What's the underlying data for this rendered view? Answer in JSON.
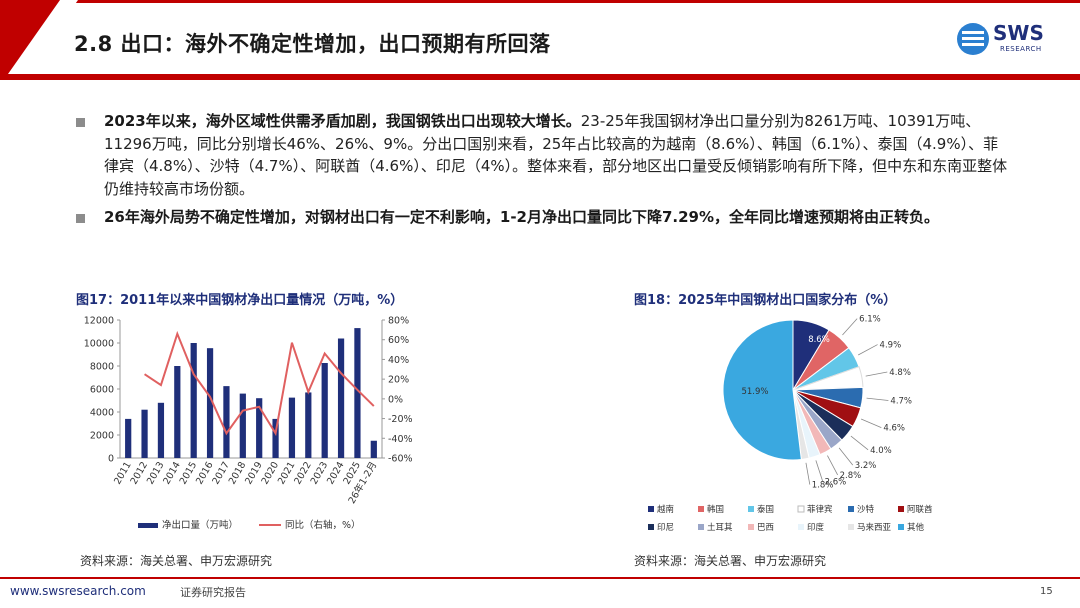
{
  "header": {
    "title": "2.8 出口：海外不确定性增加，出口预期有所回落",
    "logo_text": "SWS",
    "logo_sub": "RESEARCH"
  },
  "bullets": [
    {
      "bold": "2023年以来，海外区域性供需矛盾加剧，我国钢铁出口出现较大增长。",
      "text": "23-25年我国钢材净出口量分别为8261万吨、10391万吨、11296万吨，同比分别增长46%、26%、9%。分出口国别来看，25年占比较高的为越南（8.6%）、韩国（6.1%）、泰国（4.9%）、菲律宾（4.8%）、沙特（4.7%）、阿联酋（4.6%）、印尼（4%）。整体来看，部分地区出口量受反倾销影响有所下降，但中东和东南亚整体仍维持较高市场份额。"
    },
    {
      "bold": "26年海外局势不确定性增加，对钢材出口有一定不利影响，1-2月净出口量同比下降7.29%，全年同比增速预期将由正转负。",
      "text": ""
    }
  ],
  "fig17": {
    "title": "图17：2011年以来中国钢材净出口量情况（万吨，%）",
    "source": "资料来源：海关总署、申万宏源研究"
  },
  "fig18": {
    "title": "图18：2025年中国钢材出口国家分布（%）",
    "source": "资料来源：海关总署、申万宏源研究"
  },
  "footer": {
    "url": "www.swsresearch.com",
    "note": "证券研究报告",
    "page": "15"
  },
  "chart_data": [
    {
      "type": "bar",
      "categories": [
        "2011",
        "2012",
        "2013",
        "2014",
        "2015",
        "2016",
        "2017",
        "2018",
        "2019",
        "2020",
        "2021",
        "2022",
        "2023",
        "2024",
        "2025",
        "26年1-2月"
      ],
      "series": [
        {
          "name": "净出口量（万吨）",
          "type": "bar",
          "axis": "left",
          "color": "#1f2f7a",
          "values": [
            3400,
            4200,
            4800,
            8000,
            10000,
            9550,
            6250,
            5600,
            5200,
            3400,
            5250,
            5700,
            8261,
            10391,
            11296,
            1500
          ]
        },
        {
          "name": "同比（右轴，%）",
          "type": "line",
          "axis": "right",
          "color": "#e06060",
          "values": [
            null,
            25,
            14,
            66,
            25,
            2,
            -35,
            -12,
            -8,
            -35,
            57,
            7,
            46,
            26,
            9,
            -7.29
          ]
        }
      ],
      "y_left": {
        "ticks": [
          "0",
          "2000",
          "4000",
          "6000",
          "8000",
          "10000",
          "12000"
        ],
        "lim": [
          0,
          12000
        ]
      },
      "y_right": {
        "ticks": [
          "-60%",
          "-40%",
          "-20%",
          "0%",
          "20%",
          "40%",
          "60%",
          "80%"
        ],
        "lim": [
          -60,
          80
        ]
      },
      "legend": [
        "净出口量（万吨）",
        "同比（右轴，%）"
      ]
    },
    {
      "type": "pie",
      "labels": [
        "越南",
        "韩国",
        "泰国",
        "菲律宾",
        "沙特",
        "阿联酋",
        "印尼",
        "土耳其",
        "巴西",
        "印度",
        "马来西亚",
        "其他"
      ],
      "values": [
        8.6,
        6.1,
        4.9,
        4.8,
        4.7,
        4.6,
        4.0,
        3.2,
        2.8,
        2.6,
        1.8,
        51.9
      ],
      "data_labels": [
        "8.6%",
        "6.1%",
        "4.9%",
        "4.8%",
        "4.7%",
        "4.6%",
        "4.0%",
        "3.2%",
        "2.8%",
        "2.6%",
        "1.8%",
        "51.9%"
      ],
      "colors": [
        "#1f2f7a",
        "#e06565",
        "#62c6e8",
        "#ffffff",
        "#2b6cb0",
        "#a00f12",
        "#1b2e5a",
        "#9aa6c8",
        "#f2b8b8",
        "#e8f4fb",
        "#e6e6e6",
        "#3aa8e0"
      ]
    }
  ]
}
